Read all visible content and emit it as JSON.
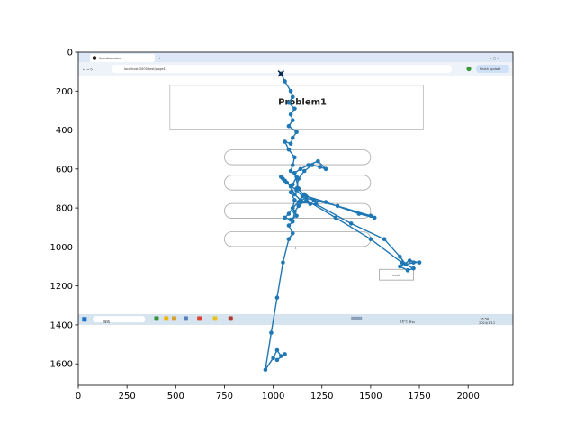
{
  "chart_data": {
    "type": "line",
    "title": "",
    "xlabel": "",
    "ylabel": "",
    "xlim": [
      0,
      2230
    ],
    "ylim": [
      1710,
      0
    ],
    "x_ticks": [
      0,
      250,
      500,
      750,
      1000,
      1250,
      1500,
      1750,
      2000
    ],
    "y_ticks": [
      0,
      200,
      400,
      600,
      800,
      1000,
      1200,
      1400,
      1600
    ],
    "grid": false,
    "legend": "none",
    "series": [
      {
        "marker": "circle",
        "color": "#1f77b4",
        "points": [
          [
            1040,
            110
          ],
          [
            1060,
            150
          ],
          [
            1090,
            200
          ],
          [
            1100,
            230
          ],
          [
            1080,
            260
          ],
          [
            1110,
            290
          ],
          [
            1090,
            320
          ],
          [
            1100,
            350
          ],
          [
            1080,
            380
          ],
          [
            1120,
            410
          ],
          [
            1100,
            440
          ],
          [
            1090,
            470
          ],
          [
            1060,
            460
          ],
          [
            1080,
            500
          ],
          [
            1110,
            540
          ],
          [
            1100,
            580
          ],
          [
            1090,
            610
          ],
          [
            1120,
            640
          ],
          [
            1100,
            680
          ],
          [
            1090,
            720
          ],
          [
            1110,
            760
          ],
          [
            1100,
            800
          ],
          [
            1120,
            840
          ],
          [
            1090,
            860
          ],
          [
            1060,
            850
          ],
          [
            1080,
            830
          ],
          [
            1100,
            800
          ],
          [
            1130,
            770
          ],
          [
            1150,
            740
          ],
          [
            1120,
            710
          ],
          [
            1070,
            670
          ],
          [
            1050,
            650
          ],
          [
            1040,
            640
          ],
          [
            1060,
            660
          ],
          [
            1090,
            690
          ],
          [
            1110,
            730
          ],
          [
            1140,
            760
          ],
          [
            1190,
            780
          ],
          [
            1210,
            760
          ],
          [
            1160,
            730
          ],
          [
            1120,
            700
          ],
          [
            1130,
            650
          ],
          [
            1160,
            610
          ],
          [
            1200,
            580
          ],
          [
            1240,
            590
          ],
          [
            1270,
            600
          ],
          [
            1230,
            560
          ],
          [
            1180,
            580
          ],
          [
            1140,
            600
          ],
          [
            1110,
            620
          ],
          [
            1130,
            700
          ],
          [
            1170,
            750
          ],
          [
            1330,
            790
          ],
          [
            1500,
            840
          ],
          [
            1520,
            850
          ],
          [
            1440,
            830
          ],
          [
            1270,
            770
          ],
          [
            1170,
            740
          ],
          [
            1140,
            770
          ],
          [
            1220,
            780
          ],
          [
            1400,
            880
          ],
          [
            1570,
            960
          ],
          [
            1650,
            1050
          ],
          [
            1680,
            1090
          ],
          [
            1720,
            1080
          ],
          [
            1750,
            1080
          ],
          [
            1700,
            1070
          ],
          [
            1650,
            1100
          ],
          [
            1690,
            1120
          ],
          [
            1720,
            1110
          ],
          [
            1660,
            1080
          ],
          [
            1500,
            960
          ],
          [
            1320,
            850
          ],
          [
            1170,
            760
          ],
          [
            1130,
            790
          ],
          [
            1110,
            820
          ],
          [
            1100,
            870
          ],
          [
            1080,
            890
          ],
          [
            1100,
            930
          ],
          [
            1080,
            960
          ],
          [
            1050,
            1080
          ],
          [
            1020,
            1260
          ],
          [
            990,
            1440
          ],
          [
            960,
            1630
          ],
          [
            1000,
            1570
          ],
          [
            1020,
            1530
          ],
          [
            1040,
            1560
          ],
          [
            1060,
            1550
          ],
          [
            1020,
            1580
          ]
        ]
      }
    ],
    "start_marker": {
      "x": 1040,
      "y": 110,
      "shape": "x"
    }
  },
  "screenshot": {
    "tab_title": "Questionnaire",
    "url": "localhost:3000/test/page1",
    "update_button": "Finish update",
    "heading": "Problem1",
    "next_button": "next",
    "taskbar_search": "搜索",
    "taskbar_temp": "16°C 多云",
    "clock_time": "16:56",
    "clock_date": "2024/1/11",
    "option_hint": "1"
  },
  "colors": {
    "line": "#1f77b4",
    "frame": "#000000",
    "browser_chrome": "#dde7f5",
    "taskbar": "#d6e4f0"
  }
}
